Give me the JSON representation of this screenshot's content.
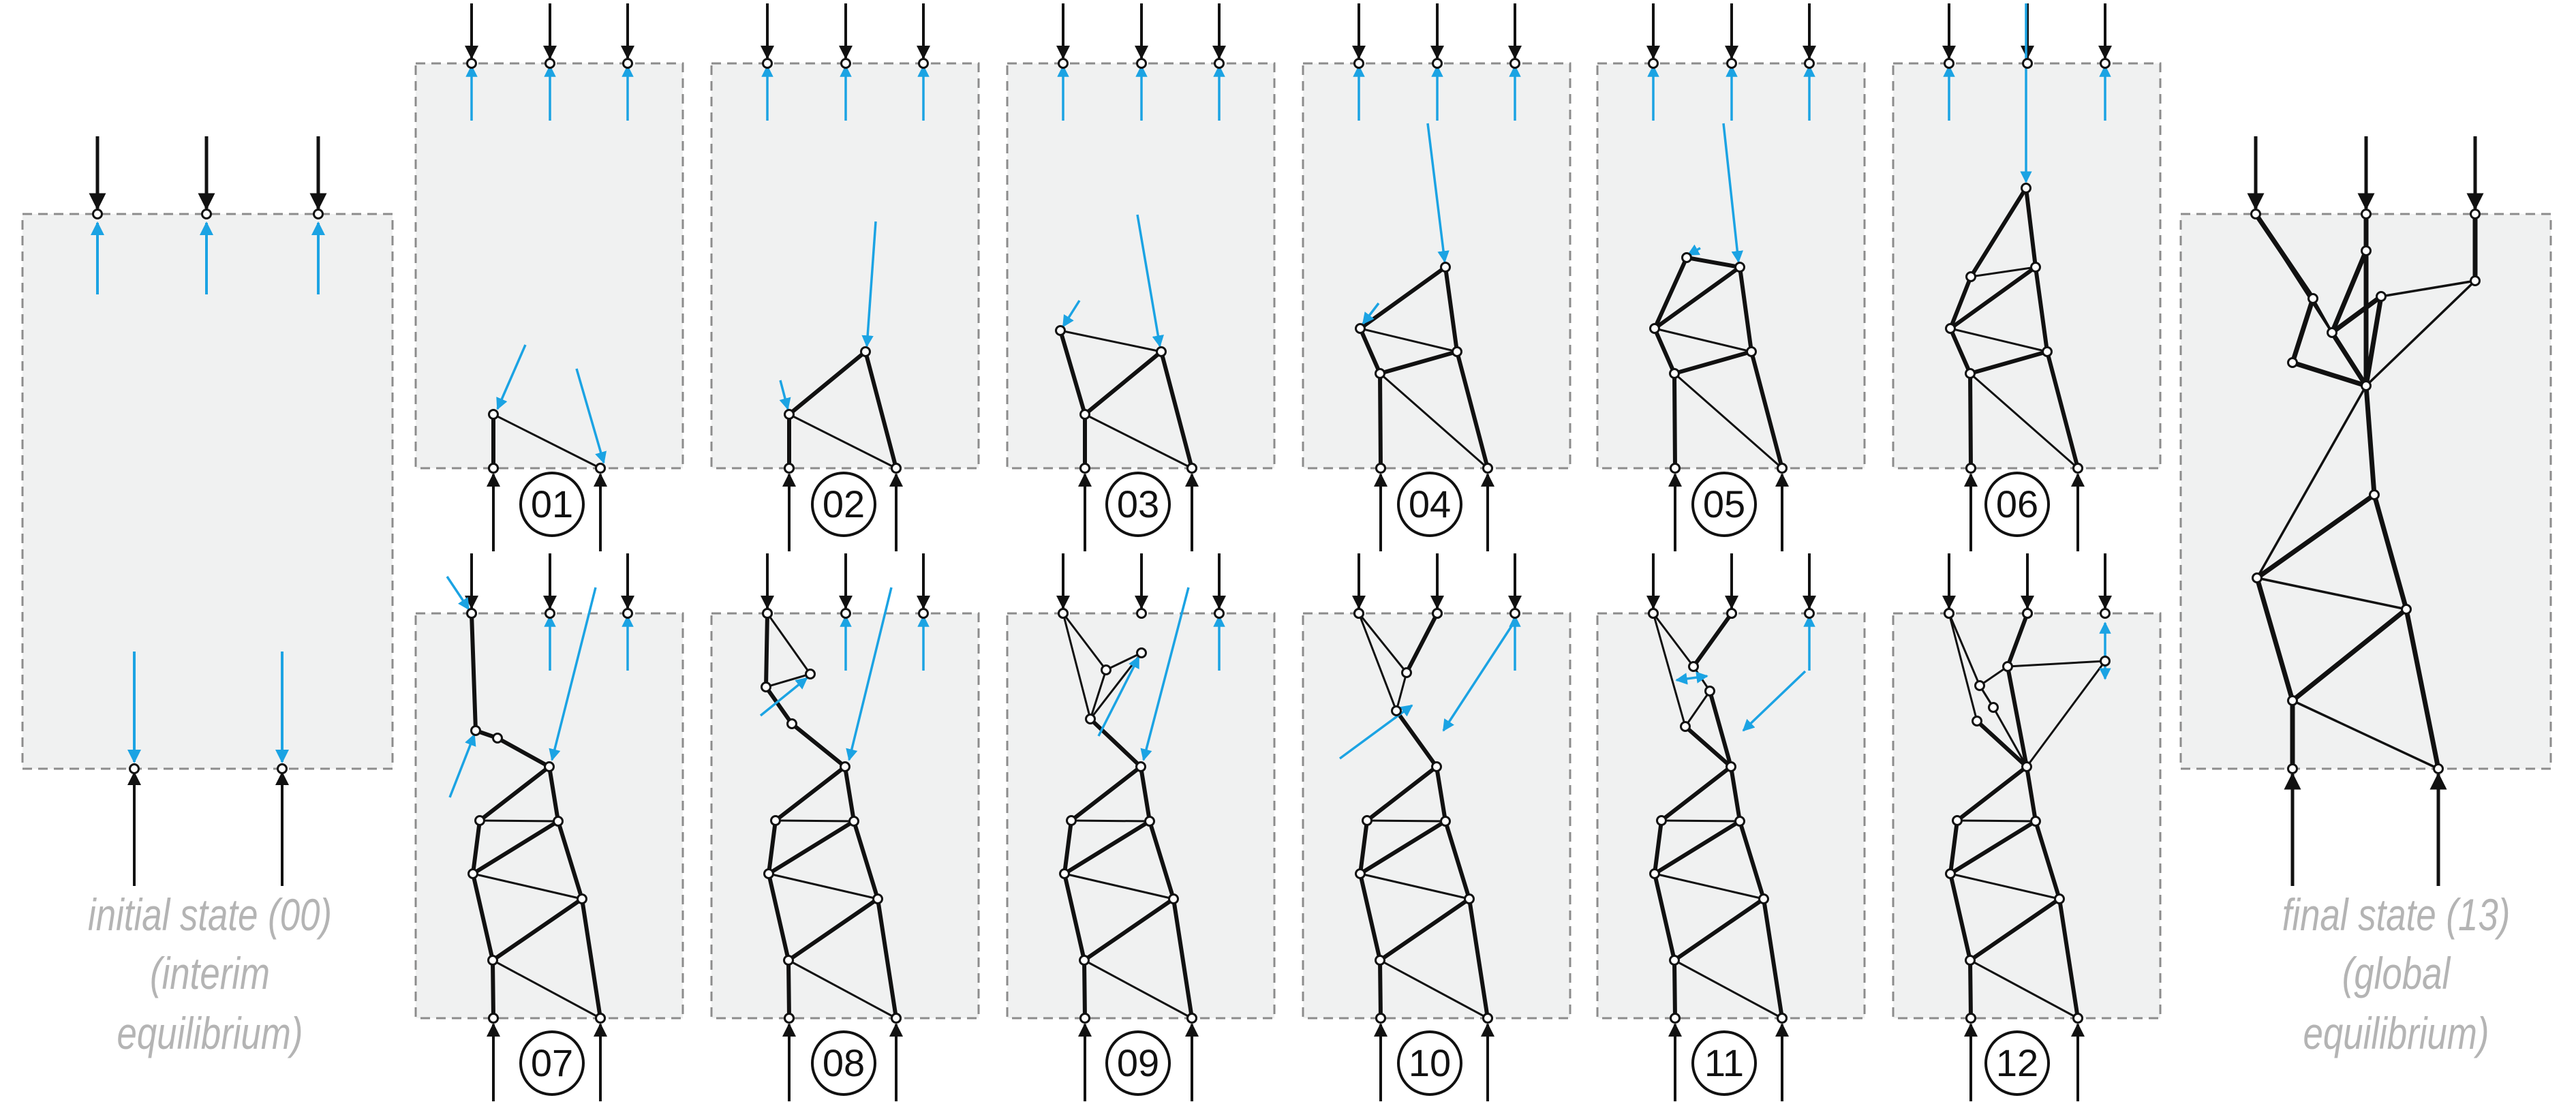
{
  "initial": {
    "caption_line1": "initial state (00)",
    "caption_line2": "(interim equilibrium)"
  },
  "final": {
    "caption_line1": "final state (13)",
    "caption_line2": "(global equilibrium)"
  },
  "steps": [
    "01",
    "02",
    "03",
    "04",
    "05",
    "06",
    "07",
    "08",
    "09",
    "10",
    "11",
    "12"
  ],
  "colors": {
    "panel_fill": "#f0f1f1",
    "panel_border": "#8c8c8c",
    "member": "#111111",
    "residual_force": "#1ba3e3",
    "caption": "#b4b4b4"
  },
  "icons": {
    "external_load": "black-arrow-icon",
    "residual": "blue-arrow-icon",
    "node": "circle-node-icon"
  }
}
